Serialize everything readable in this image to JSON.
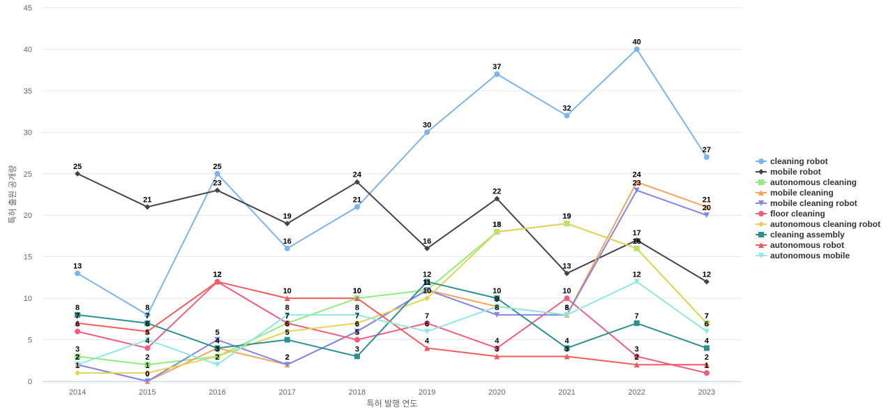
{
  "chart_data": {
    "type": "line",
    "xlabel": "특허 발행 연도",
    "ylabel": "특허 출원 공개량",
    "ylim": [
      0,
      45
    ],
    "yticks": [
      0,
      5,
      10,
      15,
      20,
      25,
      30,
      35,
      40,
      45
    ],
    "grid": true,
    "legend_position": "right",
    "x": [
      "2014",
      "2015",
      "2016",
      "2017",
      "2018",
      "2019",
      "2020",
      "2021",
      "2022",
      "2023"
    ],
    "series": [
      {
        "name": "cleaning robot",
        "color": "#7cb5ec",
        "marker": "circle",
        "values": [
          13,
          8,
          25,
          16,
          21,
          30,
          37,
          32,
          40,
          27
        ]
      },
      {
        "name": "mobile robot",
        "color": "#434348",
        "marker": "diamond",
        "values": [
          25,
          21,
          23,
          19,
          24,
          16,
          22,
          13,
          17,
          12
        ]
      },
      {
        "name": "autonomous cleaning",
        "color": "#90ed7d",
        "marker": "square",
        "values": [
          3,
          2,
          3,
          7,
          10,
          11,
          18,
          19,
          16,
          7
        ]
      },
      {
        "name": "mobile cleaning",
        "color": "#f7a35c",
        "marker": "triangle",
        "values": [
          2,
          0,
          4,
          2,
          6,
          11,
          9,
          8,
          24,
          21
        ]
      },
      {
        "name": "mobile cleaning robot",
        "color": "#8085e9",
        "marker": "triangle-down",
        "values": [
          2,
          0,
          5,
          2,
          6,
          11,
          8,
          8,
          23,
          20
        ]
      },
      {
        "name": "floor cleaning",
        "color": "#f15c80",
        "marker": "circle",
        "values": [
          6,
          4,
          12,
          7,
          5,
          7,
          4,
          10,
          3,
          1
        ]
      },
      {
        "name": "autonomous cleaning robot",
        "color": "#e4d354",
        "marker": "diamond",
        "values": [
          1,
          1,
          3,
          6,
          7,
          10,
          18,
          19,
          16,
          7
        ]
      },
      {
        "name": "cleaning assembly",
        "color": "#2b908f",
        "marker": "square",
        "values": [
          8,
          7,
          4,
          5,
          3,
          12,
          10,
          4,
          7,
          4
        ]
      },
      {
        "name": "autonomous robot",
        "color": "#f45b5b",
        "marker": "triangle",
        "values": [
          7,
          6,
          12,
          10,
          10,
          4,
          3,
          3,
          2,
          2
        ]
      },
      {
        "name": "autonomous mobile",
        "color": "#91e8e1",
        "marker": "triangle-down",
        "values": [
          2,
          5,
          2,
          8,
          8,
          6,
          9,
          8,
          12,
          6
        ]
      }
    ]
  }
}
